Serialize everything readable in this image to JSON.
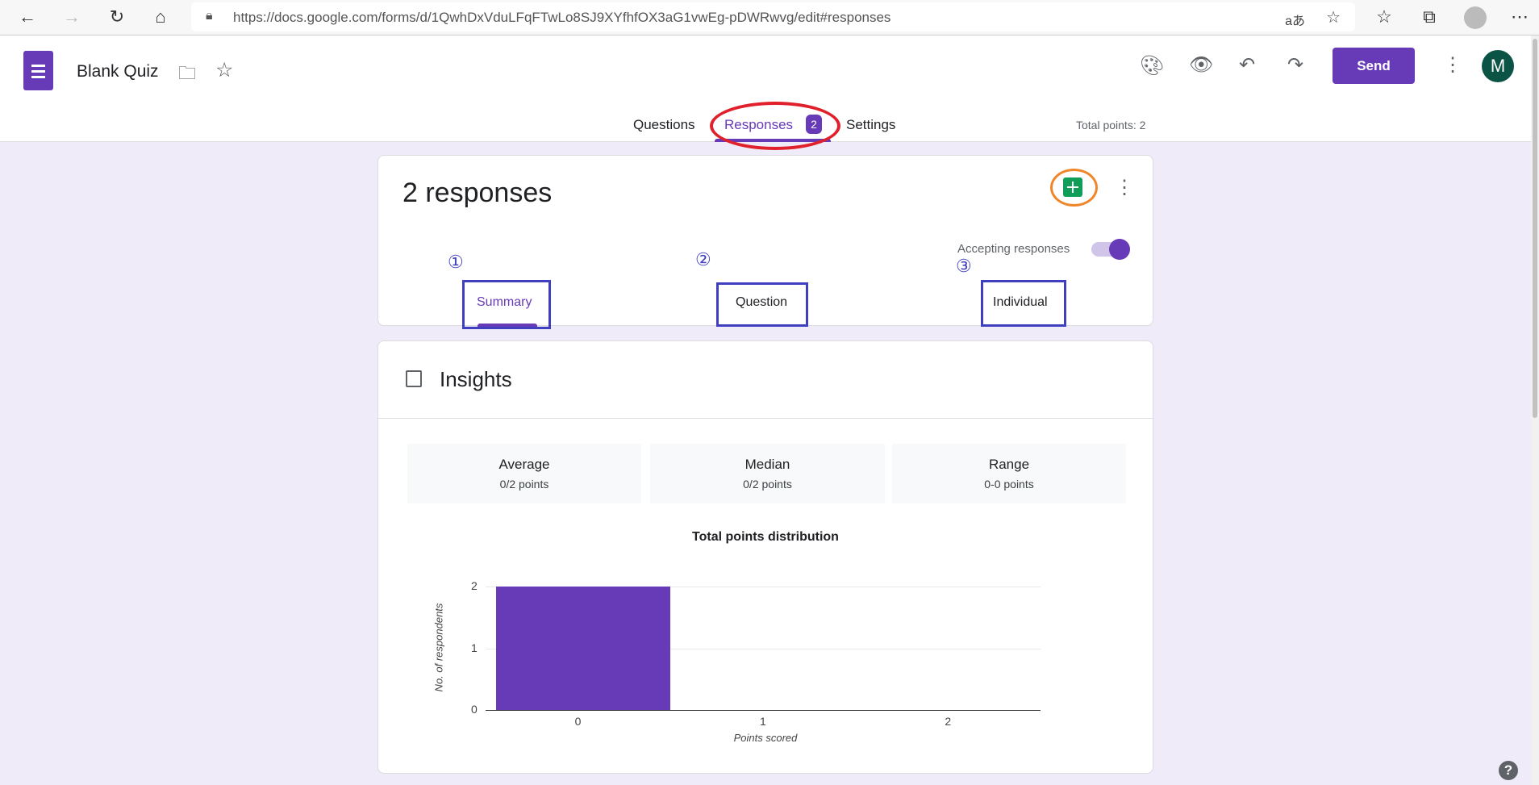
{
  "browser": {
    "url": "https://docs.google.com/forms/d/1QwhDxVduLFqFTwLo8SJ9XYfhfOX3aG1vwEg-pDWRwvg/edit#responses",
    "translate": "aあ"
  },
  "header": {
    "title": "Blank Quiz",
    "send_label": "Send",
    "avatar": "M",
    "brand_color": "#673ab7"
  },
  "tabs": {
    "questions": "Questions",
    "responses": "Responses",
    "responses_count": "2",
    "settings": "Settings",
    "total_points": "Total points: 2"
  },
  "responses_card": {
    "title": "2 responses",
    "accepting": "Accepting responses",
    "accepting_on": true,
    "annotations": [
      "①",
      "②",
      "③"
    ],
    "subtabs": [
      "Summary",
      "Question",
      "Individual"
    ]
  },
  "insights": {
    "title": "Insights",
    "stats": [
      {
        "label": "Average",
        "value": "0/2 points"
      },
      {
        "label": "Median",
        "value": "0/2 points"
      },
      {
        "label": "Range",
        "value": "0-0 points"
      }
    ]
  },
  "chart_data": {
    "type": "bar",
    "title": "Total points distribution",
    "categories": [
      "0",
      "1",
      "2"
    ],
    "values": [
      2,
      0,
      0
    ],
    "xlabel": "Points scored",
    "ylabel": "No. of respondents",
    "ylim": [
      0,
      2
    ],
    "yticks": [
      "0",
      "1",
      "2"
    ],
    "color": "#673ab7",
    "grid": true
  }
}
